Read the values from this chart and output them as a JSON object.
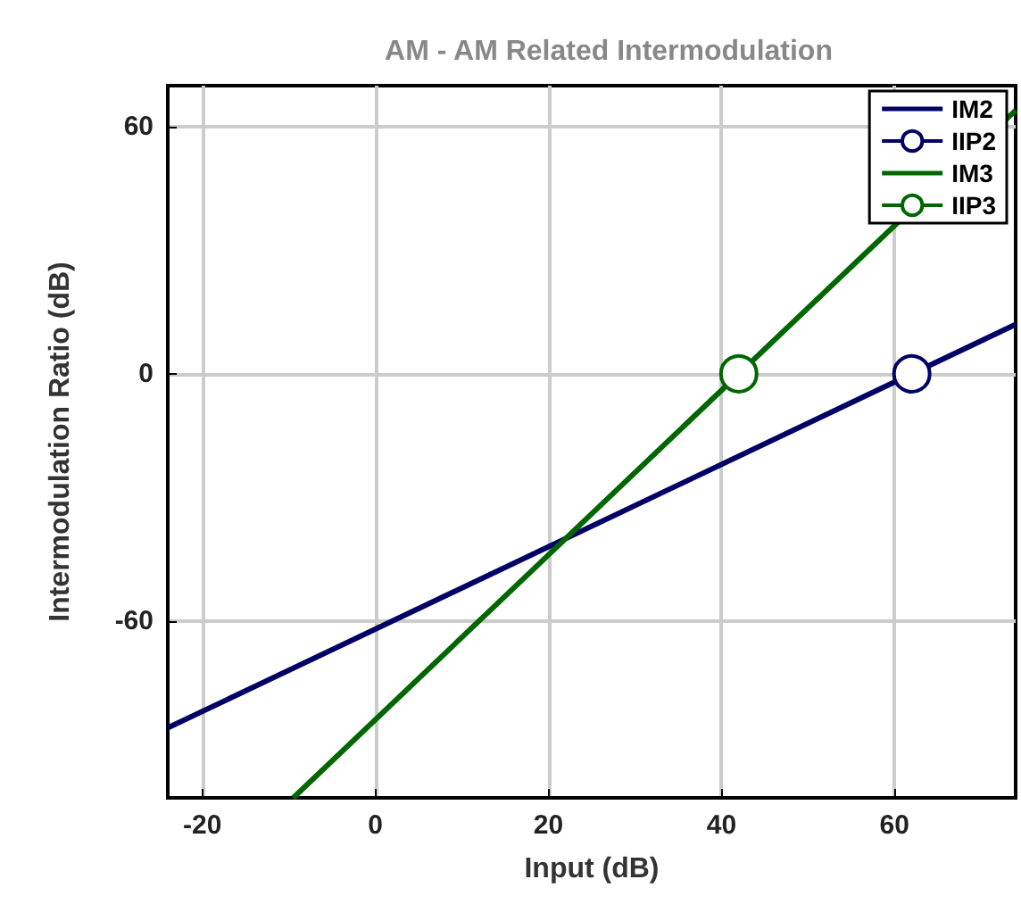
{
  "chart_data": {
    "type": "line",
    "title": "AM - AM Related Intermodulation",
    "xlabel": "Input (dB)",
    "ylabel": "Intermodulation Ratio (dB)",
    "xlim": [
      -24,
      74
    ],
    "xticks": [
      -20,
      0,
      20,
      40,
      60
    ],
    "ylim": [
      -103,
      70
    ],
    "yticks": [
      -60,
      0,
      60
    ],
    "grid": true,
    "legend": "top right",
    "series": [
      {
        "name": "IM2",
        "color": "#000066",
        "x": [
          -24,
          74
        ],
        "values": [
          -86,
          12
        ],
        "marker": "none"
      },
      {
        "name": "IIP2",
        "type": "scatter",
        "color": "#000066",
        "x": [
          62
        ],
        "values": [
          0
        ],
        "marker": "circle"
      },
      {
        "name": "IM3",
        "color": "#006600",
        "x": [
          -9.5,
          74
        ],
        "values": [
          -103,
          64
        ],
        "marker": "none"
      },
      {
        "name": "IIP3",
        "type": "scatter",
        "color": "#006600",
        "x": [
          42
        ],
        "values": [
          0
        ],
        "marker": "circle"
      }
    ]
  }
}
